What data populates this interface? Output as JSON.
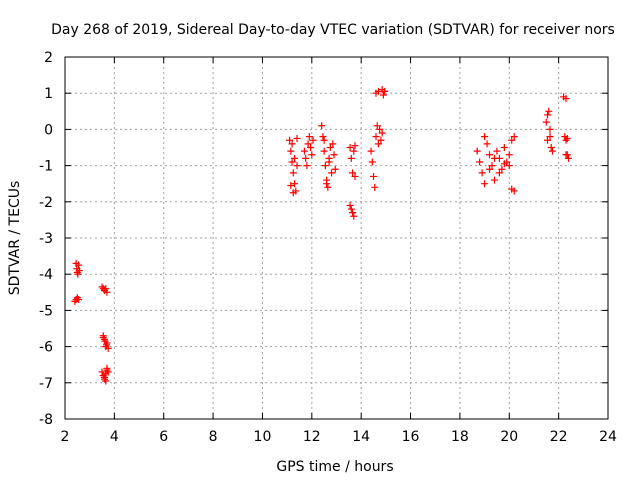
{
  "chart_data": {
    "type": "scatter",
    "title": "Day 268 of 2019, Sidereal Day-to-day VTEC variation (SDTVAR) for receiver nors",
    "xlabel": "GPS time / hours",
    "ylabel": "SDTVAR / TECUs",
    "xlim": [
      2,
      24
    ],
    "ylim": [
      -8,
      2
    ],
    "xticks": [
      2,
      4,
      6,
      8,
      10,
      12,
      14,
      16,
      18,
      20,
      22,
      24
    ],
    "yticks": [
      -8,
      -7,
      -6,
      -5,
      -4,
      -3,
      -2,
      -1,
      0,
      1,
      2
    ],
    "grid": true,
    "marker": "plus",
    "color": "#ff0000",
    "series": [
      {
        "name": "SDTVAR",
        "x": [
          2.45,
          2.48,
          2.5,
          2.52,
          2.55,
          2.58,
          2.4,
          2.45,
          2.5,
          2.55,
          3.5,
          3.55,
          3.6,
          3.65,
          3.7,
          3.55,
          3.62,
          3.68,
          3.5,
          3.55,
          3.6,
          3.65,
          3.7,
          3.75,
          3.55,
          3.6,
          3.65,
          3.7,
          3.75,
          3.6,
          3.65,
          3.7,
          11.1,
          11.15,
          11.2,
          11.25,
          11.3,
          11.35,
          11.4,
          11.2,
          11.3,
          11.4,
          11.15,
          11.25,
          11.7,
          11.75,
          11.8,
          11.85,
          11.9,
          11.95,
          12.0,
          12.05,
          12.4,
          12.45,
          12.5,
          12.55,
          12.6,
          12.65,
          12.7,
          12.75,
          12.8,
          12.5,
          12.6,
          12.7,
          12.85,
          12.9,
          12.95,
          13.55,
          13.6,
          13.65,
          13.7,
          13.75,
          13.55,
          13.6,
          13.65,
          13.7,
          13.75,
          14.4,
          14.45,
          14.5,
          14.55,
          14.6,
          14.65,
          14.7,
          14.75,
          14.8,
          14.85,
          14.6,
          14.7,
          14.85,
          14.9,
          14.95,
          18.7,
          18.8,
          18.9,
          19.0,
          19.1,
          19.2,
          19.3,
          19.4,
          19.5,
          19.6,
          19.7,
          19.8,
          19.9,
          20.0,
          20.1,
          20.2,
          19.0,
          19.2,
          19.4,
          19.6,
          19.8,
          20.0,
          20.1,
          20.2,
          21.5,
          21.55,
          21.6,
          21.65,
          21.7,
          21.75,
          21.55,
          21.65,
          22.2,
          22.25,
          22.3,
          22.35,
          22.4,
          22.3,
          22.35,
          22.3
        ],
        "y": [
          -3.7,
          -3.85,
          -3.95,
          -4.0,
          -3.75,
          -3.9,
          -4.75,
          -4.7,
          -4.65,
          -4.7,
          -4.35,
          -4.4,
          -4.45,
          -4.4,
          -4.5,
          -5.75,
          -5.85,
          -5.95,
          -6.7,
          -6.8,
          -6.9,
          -6.75,
          -6.6,
          -6.7,
          -5.7,
          -5.8,
          -6.0,
          -5.9,
          -6.05,
          -6.85,
          -6.95,
          -6.65,
          -0.3,
          -0.6,
          -0.9,
          -1.2,
          -1.5,
          -1.7,
          -0.25,
          -0.4,
          -0.8,
          -1.0,
          -1.55,
          -1.75,
          -0.6,
          -0.8,
          -1.0,
          -0.4,
          -0.2,
          -0.5,
          -0.7,
          -0.3,
          0.1,
          -0.2,
          -0.6,
          -1.0,
          -1.4,
          -1.6,
          -0.8,
          -0.5,
          -1.2,
          -0.3,
          -1.5,
          -0.9,
          -0.4,
          -0.7,
          -1.1,
          -0.5,
          -0.8,
          -1.2,
          -0.6,
          -0.45,
          -2.1,
          -2.2,
          -2.3,
          -2.4,
          -1.3,
          -0.6,
          -0.9,
          -1.3,
          -1.6,
          -0.2,
          0.1,
          -0.4,
          0.0,
          -0.3,
          -0.1,
          1.0,
          1.05,
          1.1,
          0.95,
          1.05,
          -0.6,
          -0.9,
          -1.2,
          -0.2,
          -0.4,
          -0.7,
          -1.0,
          -1.4,
          -0.6,
          -0.8,
          -1.1,
          -0.5,
          -0.9,
          -0.7,
          -0.3,
          -0.2,
          -1.5,
          -1.1,
          -0.8,
          -1.2,
          -0.95,
          -1.0,
          -1.65,
          -1.7,
          0.2,
          0.4,
          0.5,
          -0.2,
          -0.5,
          -0.6,
          -0.3,
          0.0,
          0.9,
          -0.2,
          -0.3,
          -0.7,
          -0.8,
          -0.7,
          -0.25,
          0.85
        ]
      }
    ]
  }
}
